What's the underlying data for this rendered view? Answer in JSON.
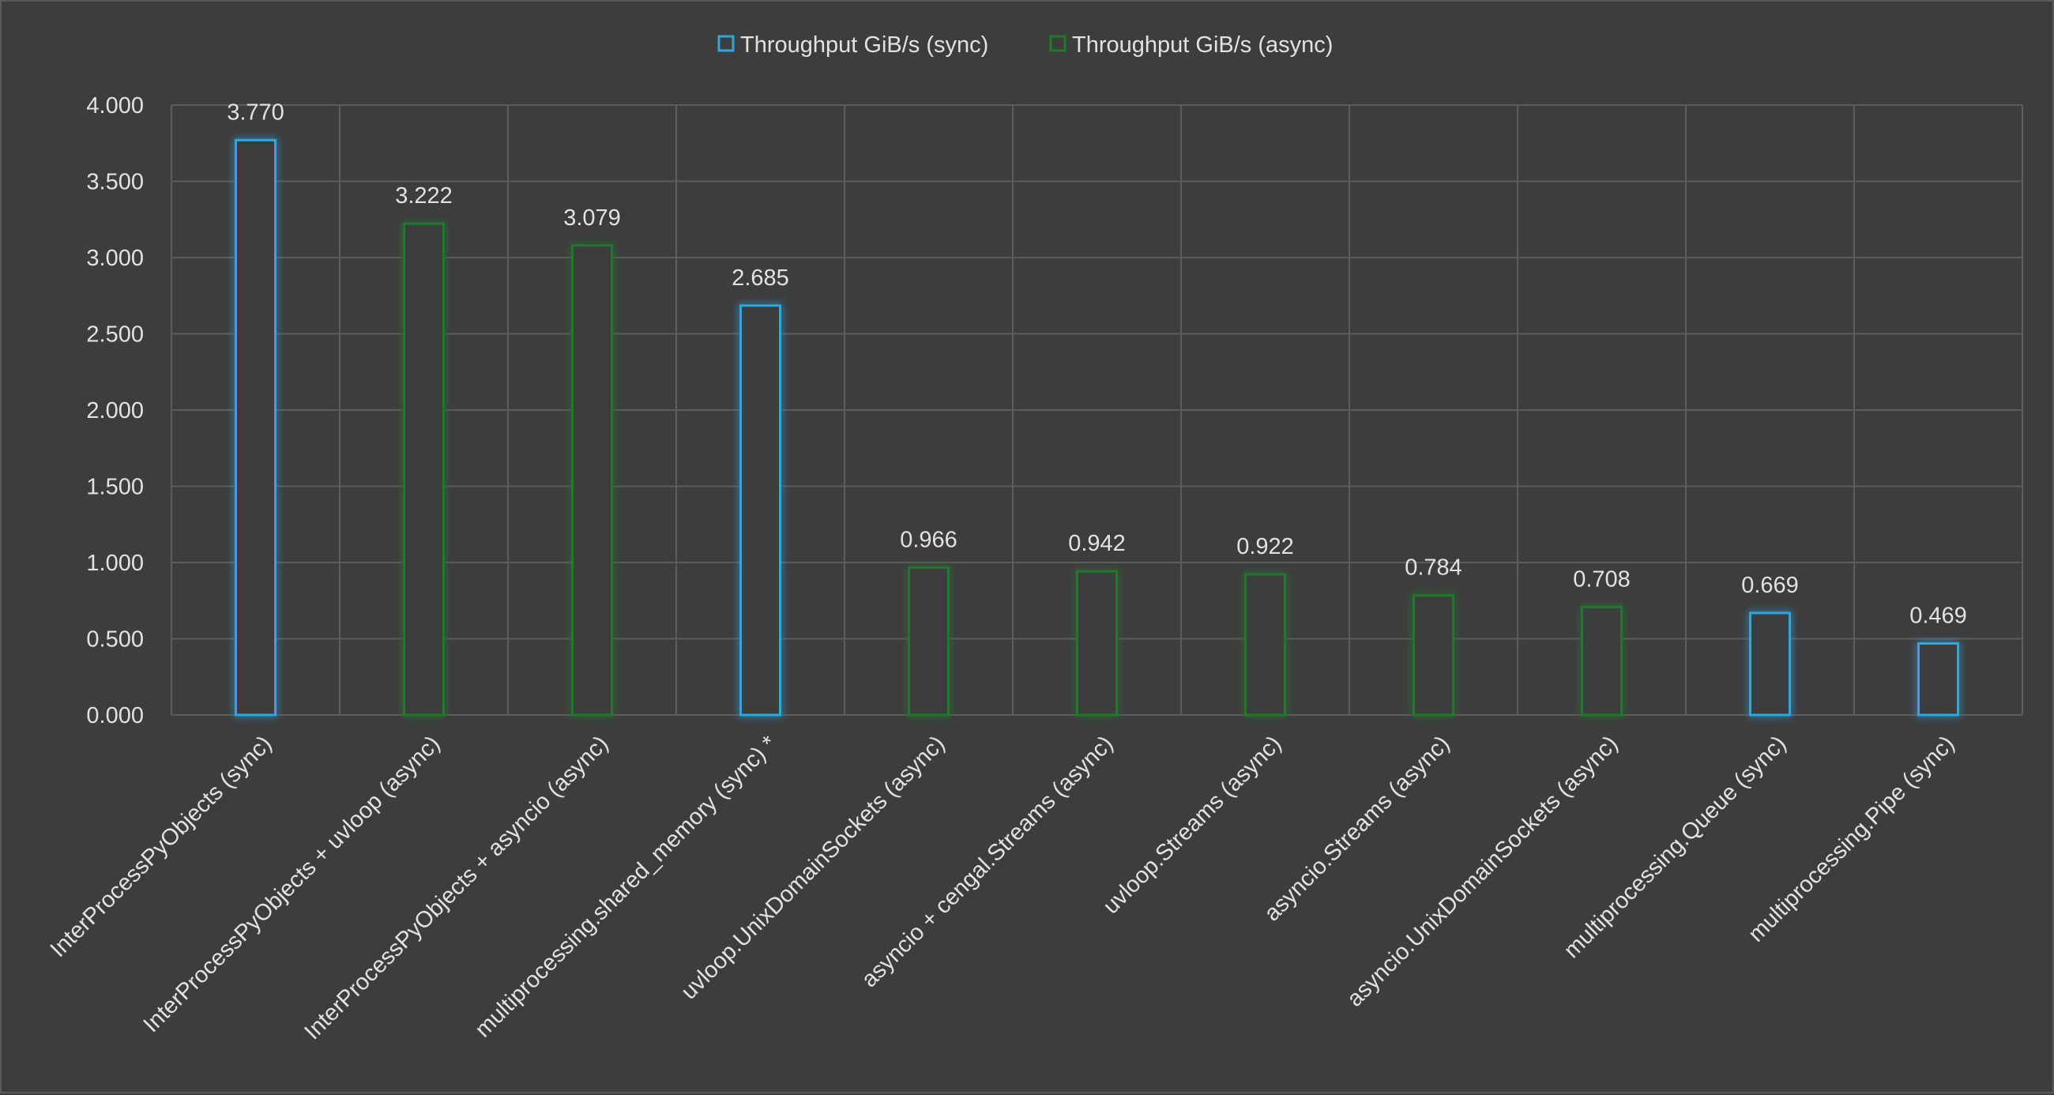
{
  "chart_data": {
    "type": "bar",
    "categories": [
      "InterProcessPyObjects (sync)",
      "InterProcessPyObjects + uvloop (async)",
      "InterProcessPyObjects + asyncio (async)",
      "multiprocessing.shared_memory (sync) *",
      "uvloop.UnixDomainSockets (async)",
      "asyncio + cengal.Streams (async)",
      "uvloop.Streams (async)",
      "asyncio.Streams (async)",
      "asyncio.UnixDomainSockets (async)",
      "multiprocessing.Queue (sync)",
      "multiprocessing.Pipe (sync)"
    ],
    "values": [
      3.77,
      3.222,
      3.079,
      2.685,
      0.966,
      0.942,
      0.922,
      0.784,
      0.708,
      0.669,
      0.469
    ],
    "data_labels": [
      "3.770",
      "3.222",
      "3.079",
      "2.685",
      "0.966",
      "0.942",
      "0.922",
      "0.784",
      "0.708",
      "0.669",
      "0.469"
    ],
    "bar_series": [
      0,
      1,
      1,
      0,
      1,
      1,
      1,
      1,
      1,
      0,
      0
    ],
    "series": [
      {
        "name": "Throughput GiB/s (sync)",
        "color": "#2ba8e0"
      },
      {
        "name": "Throughput GiB/s (async)",
        "color": "#1f7a2a"
      }
    ],
    "yticks": [
      "0.000",
      "0.500",
      "1.000",
      "1.500",
      "2.000",
      "2.500",
      "3.000",
      "3.500",
      "4.000"
    ],
    "ylim": [
      0,
      4
    ],
    "title": "",
    "xlabel": "",
    "ylabel": "",
    "grid": true,
    "legend_position": "top-center"
  }
}
